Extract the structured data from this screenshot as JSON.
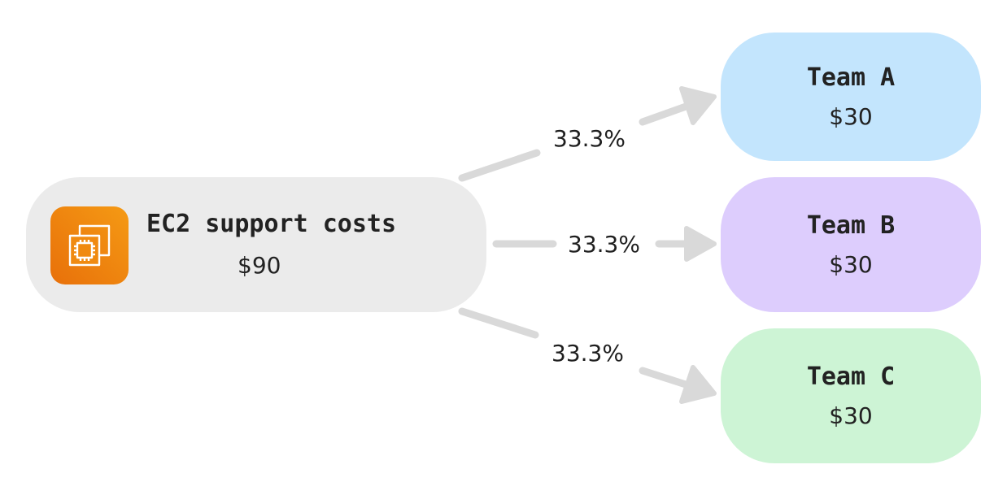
{
  "diagram": {
    "source": {
      "title": "EC2 support costs",
      "amount": "$90",
      "icon": "ec2-chip-icon",
      "color": "#ebebeb",
      "icon_color": "#f08a10"
    },
    "allocations": [
      {
        "percent": "33.3%",
        "team": "Team A",
        "amount": "$30",
        "color": "#c3e5fd"
      },
      {
        "percent": "33.3%",
        "team": "Team B",
        "amount": "$30",
        "color": "#ddcdfd"
      },
      {
        "percent": "33.3%",
        "team": "Team C",
        "amount": "$30",
        "color": "#cdf4d5"
      }
    ],
    "connector_color": "#d9d9d9"
  }
}
